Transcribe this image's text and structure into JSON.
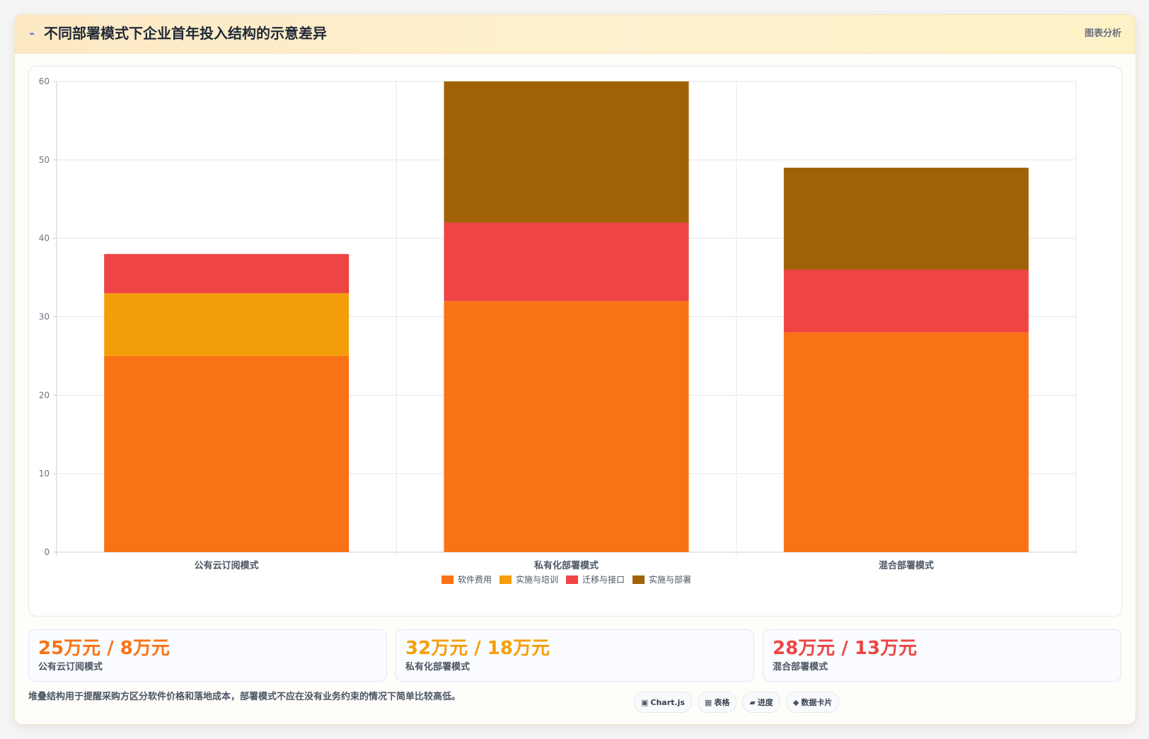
{
  "header": {
    "icon": "chart-icon",
    "title": "不同部署模式下企业首年投入结构的示意差异",
    "tag": "图表分析"
  },
  "chart_data": {
    "type": "bar",
    "stacked": true,
    "categories": [
      "公有云订阅模式",
      "私有化部署模式",
      "混合部署模式"
    ],
    "series": [
      {
        "name": "软件费用",
        "color": "#f97316",
        "values": [
          25,
          32,
          28
        ]
      },
      {
        "name": "实施与培训",
        "color": "#f59e0b",
        "values": [
          8,
          0,
          0
        ]
      },
      {
        "name": "迁移与接口",
        "color": "#ef4444",
        "values": [
          5,
          10,
          8
        ]
      },
      {
        "name": "实施与部署",
        "color": "#a16207",
        "values": [
          0,
          18,
          13
        ]
      }
    ],
    "ylim": [
      0,
      60
    ],
    "yticks": [
      0,
      10,
      20,
      30,
      40,
      50,
      60
    ],
    "grid": true,
    "legend": "bottom",
    "title": "",
    "xlabel": "",
    "ylabel": ""
  },
  "stats": [
    {
      "value": "25万元 / 8万元",
      "label": "公有云订阅模式",
      "color": "#f97316"
    },
    {
      "value": "32万元 / 18万元",
      "label": "私有化部署模式",
      "color": "#f59e0b"
    },
    {
      "value": "28万元 / 13万元",
      "label": "混合部署模式",
      "color": "#ef4444"
    }
  ],
  "footnote": "堆叠结构用于提醒采购方区分软件价格和落地成本，部署模式不应在没有业务约束的情况下简单比较高低。",
  "chips": [
    {
      "icon": "▣",
      "label": "Chart.js"
    },
    {
      "icon": "▦",
      "label": "表格"
    },
    {
      "icon": "▰",
      "label": "进度"
    },
    {
      "icon": "◆",
      "label": "数据卡片"
    }
  ]
}
